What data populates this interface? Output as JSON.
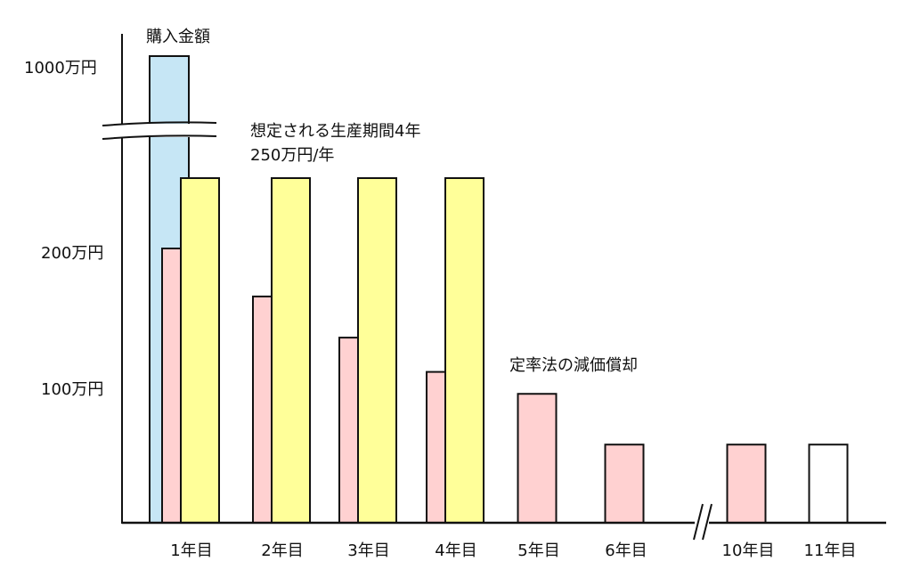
{
  "chart_data": {
    "type": "bar",
    "title": "",
    "xlabel": "",
    "ylabel": "",
    "y_tick_labels": [
      "1000万円",
      "200万円",
      "100万円"
    ],
    "categories": [
      "1年目",
      "2年目",
      "3年目",
      "4年目",
      "5年目",
      "6年目",
      "10年目",
      "11年目"
    ],
    "axis_break": {
      "y": true,
      "x_between": [
        "6年目",
        "10年目"
      ]
    },
    "series": [
      {
        "name": "購入金額",
        "color": "#c6e6f5",
        "values": [
          1000,
          null,
          null,
          null,
          null,
          null,
          null,
          null
        ]
      },
      {
        "name": "定率法の減価償却",
        "color": "#ffd1d1",
        "values": [
          200,
          165,
          135,
          110,
          94,
          57,
          57,
          null
        ]
      },
      {
        "name": "想定される生産期間4年 250万円/年",
        "color": "#ffff99",
        "values": [
          250,
          250,
          250,
          250,
          null,
          null,
          null,
          null
        ]
      },
      {
        "name": "",
        "color": "#ffffff",
        "values": [
          null,
          null,
          null,
          null,
          null,
          null,
          null,
          57
        ]
      }
    ],
    "annotations": {
      "purchase": "購入金額",
      "production_line1": "想定される生産期間4年",
      "production_line2": "250万円/年",
      "declining": "定率法の減価償却"
    }
  }
}
